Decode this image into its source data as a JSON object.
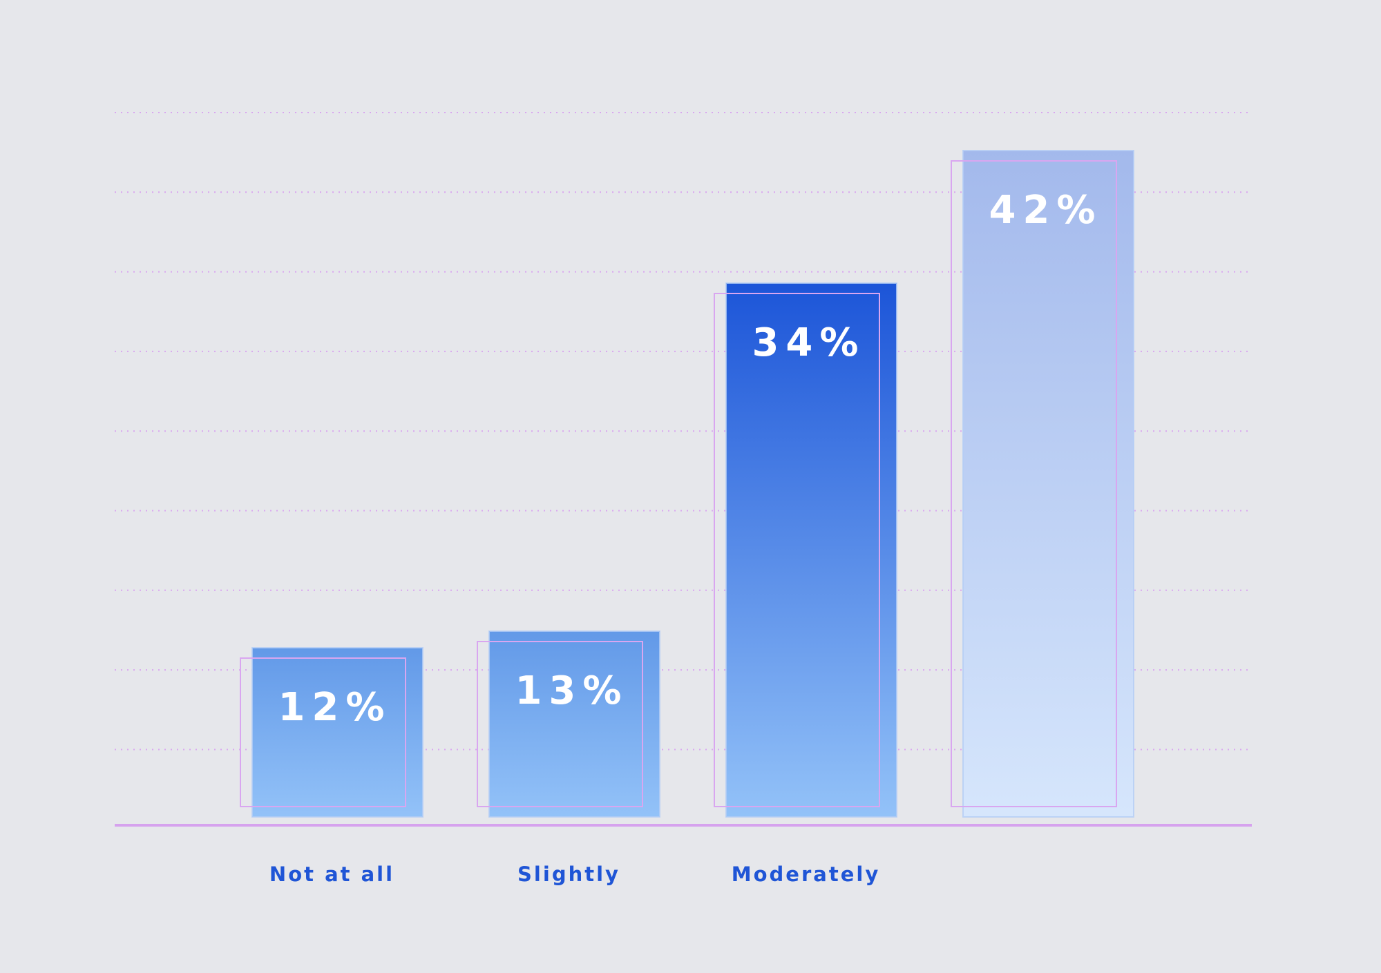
{
  "chart_data": {
    "type": "bar",
    "categories": [
      "Not at all",
      "Slightly",
      "Moderately",
      ""
    ],
    "values": [
      12,
      13,
      34,
      42
    ],
    "value_labels": [
      "12%",
      "13%",
      "34%",
      "42%"
    ],
    "title": "",
    "xlabel": "",
    "ylabel": "",
    "grid": true,
    "colors": {
      "background": "#e6e7eb",
      "category_label": "#1f55d6",
      "gridline": "#d9a6f0",
      "axis": "#d6a2ee",
      "bar_gradients": [
        [
          "#6299e8",
          "#93c2f8"
        ],
        [
          "#6299e8",
          "#93c2f8"
        ],
        [
          "#1c55d8",
          "#93c2f8"
        ],
        [
          "#a3b9ec",
          "#d6e6fc"
        ]
      ]
    }
  }
}
